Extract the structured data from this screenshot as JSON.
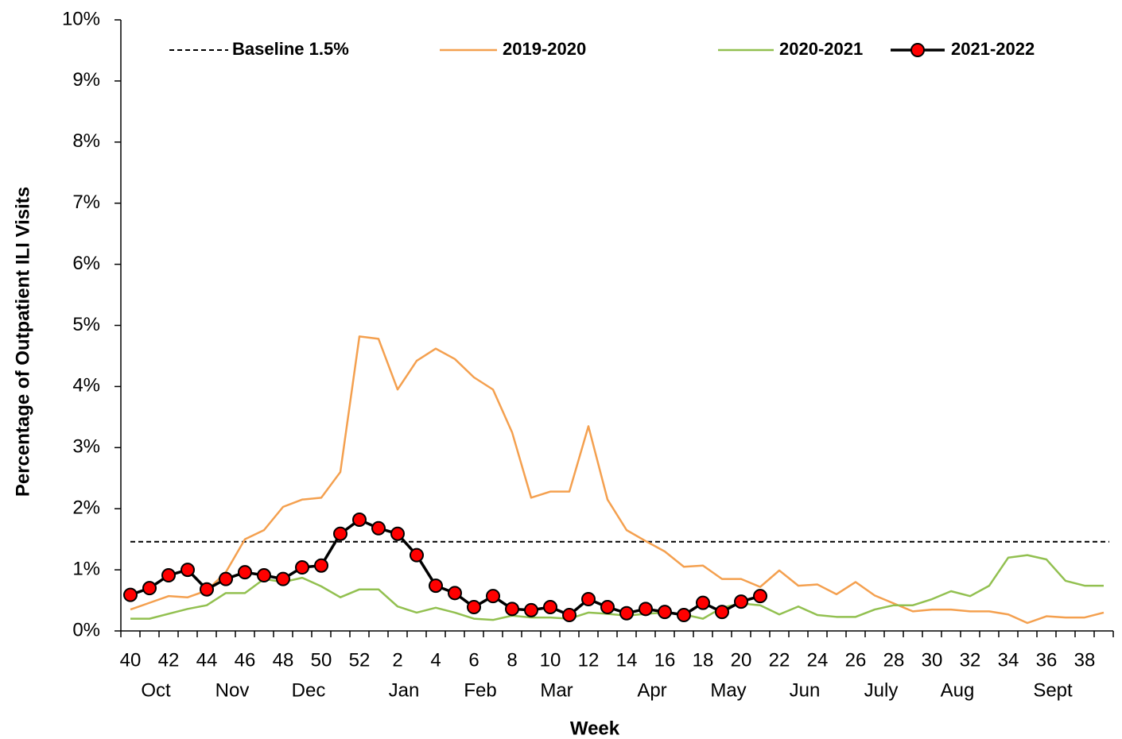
{
  "chart_data": {
    "type": "line",
    "x_label": "Week",
    "y_label": "Percentage of Outpatient ILI Visits",
    "categories": [
      "40",
      null,
      "42",
      null,
      "44",
      null,
      "46",
      null,
      "48",
      null,
      "50",
      null,
      "52",
      null,
      "2",
      null,
      "4",
      null,
      "6",
      null,
      "8",
      null,
      "10",
      null,
      "12",
      null,
      "14",
      null,
      "16",
      null,
      "18",
      null,
      "20",
      null,
      "22",
      null,
      "24",
      null,
      "26",
      null,
      "28",
      null,
      "30",
      null,
      "32",
      null,
      "34",
      null,
      "36",
      null,
      "38",
      null
    ],
    "month_labels": [
      null,
      "Oct",
      null,
      null,
      null,
      "Nov",
      null,
      null,
      null,
      "Dec",
      null,
      null,
      null,
      null,
      "Jan",
      null,
      null,
      null,
      "Feb",
      null,
      null,
      null,
      "Mar",
      null,
      null,
      null,
      null,
      "Apr",
      null,
      null,
      null,
      "May",
      null,
      null,
      null,
      "Jun",
      null,
      null,
      null,
      "July",
      null,
      null,
      null,
      "Aug",
      null,
      null,
      null,
      null,
      "Sept",
      null,
      null,
      null
    ],
    "ylim": [
      0,
      10
    ],
    "yticks": [
      {
        "value": 0,
        "label": "0%"
      },
      {
        "value": 1,
        "label": "1%"
      },
      {
        "value": 2,
        "label": "2%"
      },
      {
        "value": 3,
        "label": "3%"
      },
      {
        "value": 4,
        "label": "4%"
      },
      {
        "value": 5,
        "label": "5%"
      },
      {
        "value": 6,
        "label": "6%"
      },
      {
        "value": 7,
        "label": "7%"
      },
      {
        "value": 8,
        "label": "8%"
      },
      {
        "value": 9,
        "label": "9%"
      },
      {
        "value": 10,
        "label": "10%"
      }
    ],
    "legend": "top",
    "baseline": {
      "name": "Baseline 1.5%",
      "value": 1.46,
      "color": "#000000"
    },
    "series": [
      {
        "name": "2019-2020",
        "color": "#f4a04f",
        "values": [
          0.35,
          0.46,
          0.57,
          0.55,
          0.66,
          0.96,
          1.5,
          1.65,
          2.03,
          2.15,
          2.18,
          2.6,
          4.82,
          4.78,
          3.95,
          4.42,
          4.62,
          4.45,
          4.15,
          3.95,
          3.25,
          2.18,
          2.28,
          2.28,
          3.35,
          2.15,
          1.65,
          1.47,
          1.3,
          1.05,
          1.07,
          0.85,
          0.85,
          0.72,
          0.99,
          0.74,
          0.76,
          0.6,
          0.8,
          0.58,
          0.45,
          0.32,
          0.35,
          0.35,
          0.32,
          0.32,
          0.27,
          0.13,
          0.24,
          0.22,
          0.22,
          0.3
        ]
      },
      {
        "name": "2020-2021",
        "color": "#92c050",
        "values": [
          0.2,
          0.2,
          0.28,
          0.36,
          0.42,
          0.62,
          0.62,
          0.85,
          0.8,
          0.87,
          0.73,
          0.55,
          0.68,
          0.68,
          0.4,
          0.3,
          0.38,
          0.3,
          0.2,
          0.18,
          0.25,
          0.22,
          0.22,
          0.2,
          0.3,
          0.28,
          0.25,
          0.28,
          0.3,
          0.27,
          0.2,
          0.38,
          0.45,
          0.42,
          0.27,
          0.4,
          0.26,
          0.23,
          0.23,
          0.35,
          0.42,
          0.42,
          0.52,
          0.65,
          0.57,
          0.74,
          1.2,
          1.24,
          1.17,
          0.82,
          0.74,
          0.74
        ]
      },
      {
        "name": "2021-2022",
        "color": "#000000",
        "marker_color": "#ff0000",
        "values": [
          0.59,
          0.7,
          0.91,
          1.0,
          0.68,
          0.85,
          0.96,
          0.91,
          0.85,
          1.04,
          1.07,
          1.59,
          1.82,
          1.68,
          1.59,
          1.24,
          0.74,
          0.62,
          0.39,
          0.57,
          0.36,
          0.34,
          0.39,
          0.26,
          0.52,
          0.39,
          0.29,
          0.36,
          0.31,
          0.26,
          0.46,
          0.31,
          0.48,
          0.57,
          null,
          null,
          null,
          null,
          null,
          null,
          null,
          null,
          null,
          null,
          null,
          null,
          null,
          null,
          null,
          null,
          null,
          null
        ]
      }
    ]
  }
}
